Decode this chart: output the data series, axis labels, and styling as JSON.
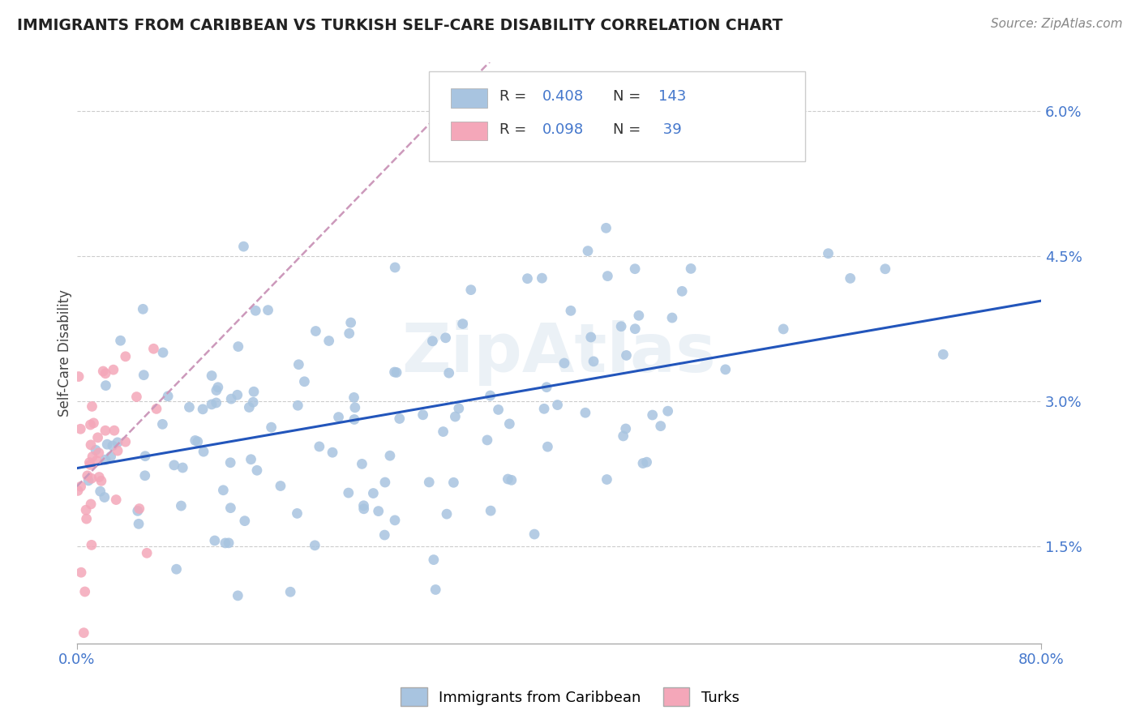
{
  "title": "IMMIGRANTS FROM CARIBBEAN VS TURKISH SELF-CARE DISABILITY CORRELATION CHART",
  "source_text": "Source: ZipAtlas.com",
  "ylabel": "Self-Care Disability",
  "xlim": [
    0.0,
    0.8
  ],
  "ylim": [
    0.005,
    0.065
  ],
  "yticks": [
    0.015,
    0.03,
    0.045,
    0.06
  ],
  "ytick_labels": [
    "1.5%",
    "3.0%",
    "4.5%",
    "6.0%"
  ],
  "watermark": "ZipAtlas",
  "caribbean_color": "#a8c4e0",
  "turks_color": "#f4a7b9",
  "caribbean_line_color": "#2255bb",
  "turks_line_color": "#cc99bb",
  "caribbean_R": 0.408,
  "caribbean_N": 143,
  "turks_R": 0.098,
  "turks_N": 39,
  "background_color": "#ffffff",
  "grid_color": "#cccccc"
}
